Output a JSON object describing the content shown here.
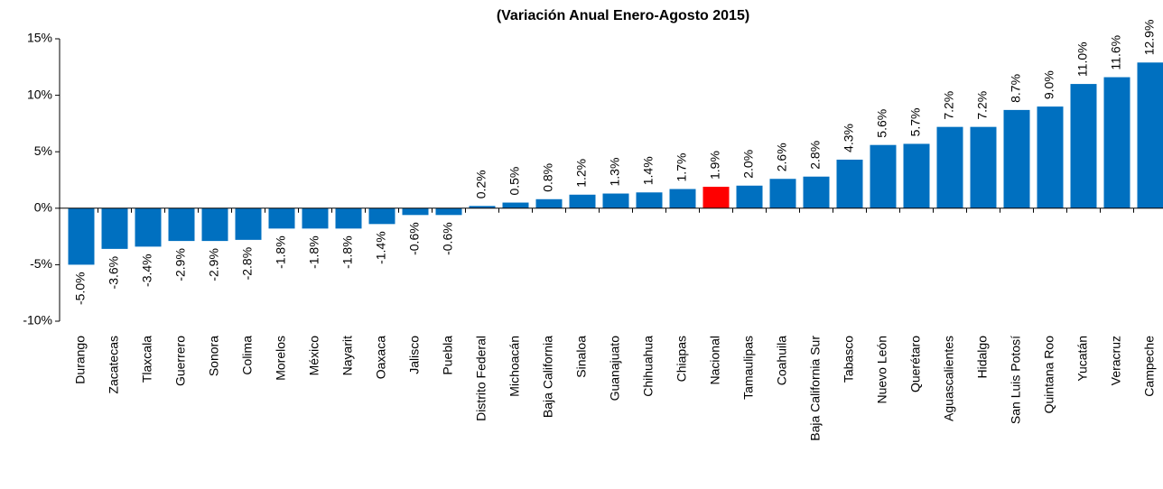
{
  "chart_data": {
    "type": "bar",
    "title": "(Variación Anual Enero-Agosto 2015)",
    "categories": [
      "Durango",
      "Zacatecas",
      "Tlaxcala",
      "Guerrero",
      "Sonora",
      "Colima",
      "Morelos",
      "México",
      "Nayarit",
      "Oaxaca",
      "Jalisco",
      "Puebla",
      "Distrito Federal",
      "Michoacán",
      "Baja California",
      "Sinaloa",
      "Guanajuato",
      "Chihuahua",
      "Chiapas",
      "Nacional",
      "Tamaulipas",
      "Coahuila",
      "Baja California Sur",
      "Tabasco",
      "Nuevo León",
      "Querétaro",
      "Aguascalientes",
      "Hidalgo",
      "San Luis Potosí",
      "Quintana Roo",
      "Yucatán",
      "Veracruz",
      "Campeche"
    ],
    "values": [
      -5.0,
      -3.6,
      -3.4,
      -2.9,
      -2.9,
      -2.8,
      -1.8,
      -1.8,
      -1.8,
      -1.4,
      -0.6,
      -0.6,
      0.2,
      0.5,
      0.8,
      1.2,
      1.3,
      1.4,
      1.7,
      1.9,
      2.0,
      2.6,
      2.8,
      4.3,
      5.6,
      5.7,
      7.2,
      7.2,
      8.7,
      9.0,
      11.0,
      11.6,
      12.9
    ],
    "value_labels": [
      "-5.0%",
      "-3.6%",
      "-3.4%",
      "-2.9%",
      "-2.9%",
      "-2.8%",
      "-1.8%",
      "-1.8%",
      "-1.8%",
      "-1.4%",
      "-0.6%",
      "-0.6%",
      "0.2%",
      "0.5%",
      "0.8%",
      "1.2%",
      "1.3%",
      "1.4%",
      "1.7%",
      "1.9%",
      "2.0%",
      "2.6%",
      "2.8%",
      "4.3%",
      "5.6%",
      "5.7%",
      "7.2%",
      "7.2%",
      "8.7%",
      "9.0%",
      "11.0%",
      "11.6%",
      "12.9%"
    ],
    "colors": [
      "#0070c0",
      "#0070c0",
      "#0070c0",
      "#0070c0",
      "#0070c0",
      "#0070c0",
      "#0070c0",
      "#0070c0",
      "#0070c0",
      "#0070c0",
      "#0070c0",
      "#0070c0",
      "#0070c0",
      "#0070c0",
      "#0070c0",
      "#0070c0",
      "#0070c0",
      "#0070c0",
      "#0070c0",
      "#ff0000",
      "#0070c0",
      "#0070c0",
      "#0070c0",
      "#0070c0",
      "#0070c0",
      "#0070c0",
      "#0070c0",
      "#0070c0",
      "#0070c0",
      "#0070c0",
      "#0070c0",
      "#0070c0",
      "#0070c0"
    ],
    "ylim": [
      -10,
      15
    ],
    "yticks": [
      {
        "value": -10,
        "label": "-10%"
      },
      {
        "value": -5,
        "label": "-5%"
      },
      {
        "value": 0,
        "label": "0%"
      },
      {
        "value": 5,
        "label": "5%"
      },
      {
        "value": 10,
        "label": "10%"
      },
      {
        "value": 15,
        "label": "15%"
      }
    ],
    "grid": false
  }
}
